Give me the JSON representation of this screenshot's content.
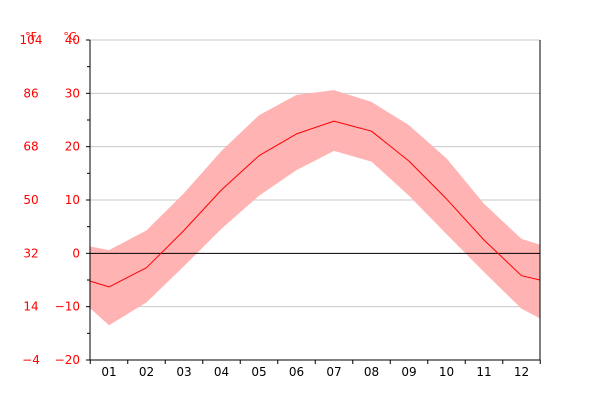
{
  "chart_data": {
    "type": "area",
    "title": "",
    "xlabel": "",
    "ylabel": "",
    "categories": [
      "01",
      "02",
      "03",
      "04",
      "05",
      "06",
      "07",
      "08",
      "09",
      "10",
      "11",
      "12"
    ],
    "ylim": [
      -20,
      40
    ],
    "y_ticks_celsius": [
      -20,
      -10,
      0,
      10,
      20,
      30,
      40
    ],
    "y_ticks_fahrenheit": [
      -4,
      14,
      32,
      50,
      68,
      86,
      104
    ],
    "unit_celsius_label": "°C",
    "unit_fahrenheit_label": "°F",
    "grid": true,
    "legend": "none",
    "boundary_values": {
      "left": {
        "mean": -5.2,
        "min": -10.3,
        "max": 1.3
      },
      "right": {
        "mean": -5.0,
        "min": -12.2,
        "max": 1.6
      }
    },
    "series": [
      {
        "values": [
          -6.3,
          -2.7,
          4.3,
          11.9,
          18.3,
          22.4,
          24.8,
          22.9,
          17.3,
          10.2,
          2.5,
          -4.2
        ]
      },
      {
        "values": [
          -13.5,
          -9.2,
          -2.4,
          4.6,
          10.8,
          15.6,
          19.2,
          17.2,
          10.8,
          3.6,
          -3.5,
          -10.4
        ]
      },
      {
        "values": [
          0.6,
          4.3,
          11.3,
          19.2,
          25.9,
          29.7,
          30.6,
          28.4,
          24.0,
          17.8,
          9.3,
          2.7
        ]
      }
    ]
  },
  "colors": {
    "axis_text": "#ff0000",
    "band_fill": "#ffb3b3",
    "mean_line": "#ff0000",
    "grid": "#c8c8c8",
    "zero_line": "#000000",
    "axis": "#000000"
  }
}
